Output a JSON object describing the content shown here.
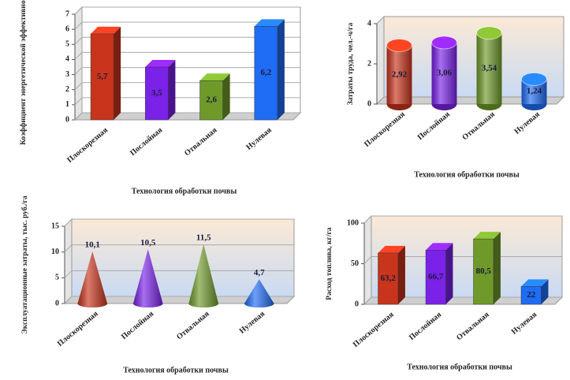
{
  "chart_data": [
    {
      "type": "bar",
      "shape": "box",
      "y_label": "Коэффициент энергетической эффективности",
      "x_label": "Технология обработки почвы",
      "categories": [
        "Плоскорезная",
        "Послойная",
        "Отвальная",
        "Нулевая"
      ],
      "values": [
        5.7,
        3.5,
        2.6,
        6.2
      ],
      "value_labels": [
        "5,7",
        "3,5",
        "2,6",
        "6,2"
      ],
      "colors": [
        "#c8341c",
        "#7a22e8",
        "#6f9a2a",
        "#1f6cf5"
      ],
      "ylim": [
        0,
        7
      ],
      "yticks": [
        0,
        1,
        2,
        3,
        4,
        5,
        6,
        7
      ],
      "grid": true
    },
    {
      "type": "bar",
      "shape": "cylinder",
      "y_label": "Затраты труда, чел.-ч/га",
      "x_label": "Технология обработки почвы",
      "categories": [
        "Плоскорезная",
        "Послойная",
        "Отвальная",
        "Нулевая"
      ],
      "values": [
        2.92,
        3.06,
        3.54,
        1.24
      ],
      "value_labels": [
        "2,92",
        "3,06",
        "3,54",
        "1,24"
      ],
      "colors": [
        "#c8341c",
        "#7a22e8",
        "#6f9a2a",
        "#1f6cf5"
      ],
      "ylim": [
        0,
        4
      ],
      "yticks": [
        0,
        2,
        4
      ],
      "grid": false
    },
    {
      "type": "bar",
      "shape": "cone",
      "y_label": "Эксплуатационные затраты, тыс. руб./га",
      "x_label": "Технология обработки почвы",
      "categories": [
        "Плоскорезная",
        "Послойная",
        "Отвальная",
        "Нулевая"
      ],
      "values": [
        10.1,
        10.5,
        11.5,
        4.7
      ],
      "value_labels": [
        "10,1",
        "10,5",
        "11,5",
        "4,7"
      ],
      "colors": [
        "#c8341c",
        "#7a22e8",
        "#6f9a2a",
        "#1f6cf5"
      ],
      "ylim": [
        0,
        15
      ],
      "yticks": [
        0,
        5,
        10,
        15
      ],
      "grid": true
    },
    {
      "type": "bar",
      "shape": "box",
      "y_label": "Расход топлива, кг/га",
      "x_label": "Технология обработки почвы",
      "categories": [
        "Плоскорезная",
        "Послойная",
        "Отвальная",
        "Нулевая"
      ],
      "values": [
        63.2,
        66.7,
        80.5,
        22
      ],
      "value_labels": [
        "63,2",
        "66,7",
        "80,5",
        "22"
      ],
      "colors": [
        "#c8341c",
        "#7a22e8",
        "#6f9a2a",
        "#1f6cf5"
      ],
      "ylim": [
        0,
        100
      ],
      "yticks": [
        0,
        50,
        100
      ],
      "grid": true
    }
  ]
}
